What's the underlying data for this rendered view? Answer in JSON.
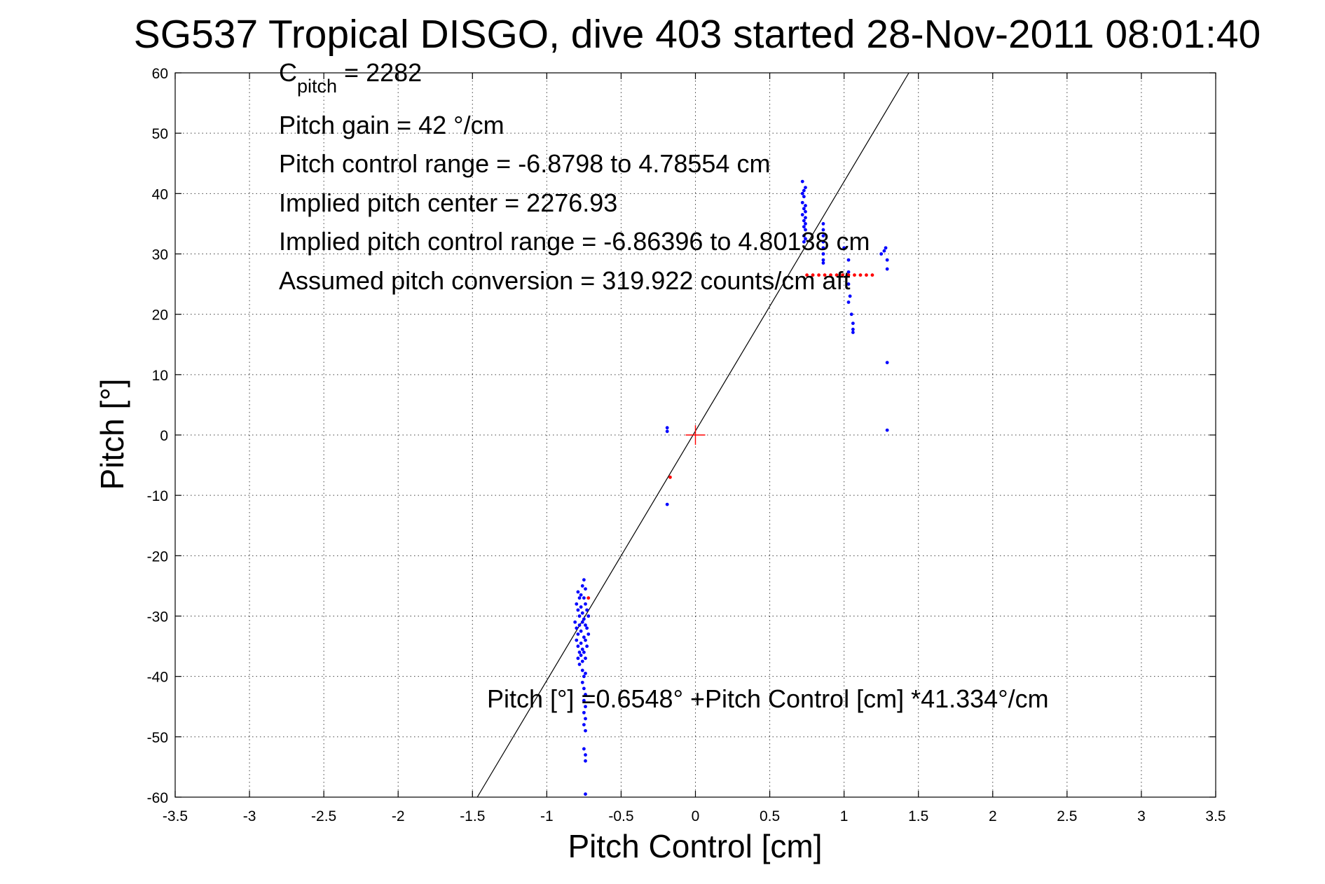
{
  "chart_data": {
    "type": "scatter",
    "title": "SG537 Tropical DISGO, dive 403 started 28-Nov-2011 08:01:40",
    "xlabel": "Pitch Control [cm]",
    "ylabel": "Pitch [°]",
    "xlim": [
      -3.5,
      3.5
    ],
    "ylim": [
      -60,
      60
    ],
    "xticks": [
      -3.5,
      -3,
      -2.5,
      -2,
      -1.5,
      -1,
      -0.5,
      0,
      0.5,
      1,
      1.5,
      2,
      2.5,
      3,
      3.5
    ],
    "xtick_labels": [
      "-3.5",
      "-3",
      "-2.5",
      "-2",
      "-1.5",
      "-1",
      "-0.5",
      "0",
      "0.5",
      "1",
      "1.5",
      "2",
      "2.5",
      "3",
      "3.5"
    ],
    "yticks": [
      -60,
      -50,
      -40,
      -30,
      -20,
      -10,
      0,
      10,
      20,
      30,
      40,
      50,
      60
    ],
    "ytick_labels": [
      "-60",
      "-50",
      "-40",
      "-30",
      "-20",
      "-10",
      "0",
      "10",
      "20",
      "30",
      "40",
      "50",
      "60"
    ],
    "grid": true,
    "fit_line": {
      "intercept": 0.6548,
      "slope": 41.334
    },
    "center_marker": {
      "x": 0,
      "y": 0
    },
    "annotations": {
      "c_pitch_main": "C",
      "c_pitch_sub": "pitch",
      "c_pitch_value": " = 2282",
      "pitch_gain": "Pitch gain = 42 °/cm",
      "pitch_control_range": "Pitch control range = -6.8798 to 4.78554 cm",
      "implied_pitch_center": "Implied pitch center = 2276.93",
      "implied_pitch_control_range": "Implied pitch control range = -6.86396 to 4.80138 cm",
      "assumed_pitch_conversion": "Assumed pitch conversion = 319.922 counts/cm aft",
      "fit_equation": "Pitch [°] =0.6548° +Pitch Control [cm] *41.334°/cm"
    },
    "series": [
      {
        "color": "#0000ff",
        "marker": "point",
        "points": [
          [
            -0.79,
            -26
          ],
          [
            -0.78,
            -27
          ],
          [
            -0.77,
            -26.5
          ],
          [
            -0.76,
            -25
          ],
          [
            -0.75,
            -24
          ],
          [
            -0.74,
            -25.5
          ],
          [
            -0.8,
            -28
          ],
          [
            -0.79,
            -29
          ],
          [
            -0.78,
            -30
          ],
          [
            -0.77,
            -28.5
          ],
          [
            -0.76,
            -29.5
          ],
          [
            -0.75,
            -27
          ],
          [
            -0.74,
            -28
          ],
          [
            -0.73,
            -29
          ],
          [
            -0.72,
            -30
          ],
          [
            -0.81,
            -31
          ],
          [
            -0.8,
            -32
          ],
          [
            -0.79,
            -33
          ],
          [
            -0.78,
            -31.5
          ],
          [
            -0.77,
            -32.5
          ],
          [
            -0.76,
            -31
          ],
          [
            -0.75,
            -30.5
          ],
          [
            -0.74,
            -31.5
          ],
          [
            -0.73,
            -32
          ],
          [
            -0.72,
            -33
          ],
          [
            -0.8,
            -34
          ],
          [
            -0.79,
            -35
          ],
          [
            -0.78,
            -36
          ],
          [
            -0.77,
            -34.5
          ],
          [
            -0.76,
            -35.5
          ],
          [
            -0.75,
            -33.5
          ],
          [
            -0.74,
            -34
          ],
          [
            -0.73,
            -35
          ],
          [
            -0.79,
            -37
          ],
          [
            -0.78,
            -38
          ],
          [
            -0.77,
            -36.5
          ],
          [
            -0.76,
            -37.5
          ],
          [
            -0.75,
            -36
          ],
          [
            -0.74,
            -37
          ],
          [
            -0.76,
            -39
          ],
          [
            -0.75,
            -40
          ],
          [
            -0.74,
            -39.5
          ],
          [
            -0.76,
            -41
          ],
          [
            -0.75,
            -42
          ],
          [
            -0.74,
            -43
          ],
          [
            -0.75,
            -44
          ],
          [
            -0.74,
            -45
          ],
          [
            -0.75,
            -46
          ],
          [
            -0.74,
            -47
          ],
          [
            -0.75,
            -48
          ],
          [
            -0.74,
            -49
          ],
          [
            -0.75,
            -52
          ],
          [
            -0.74,
            -53
          ],
          [
            -0.74,
            -54
          ],
          [
            -0.74,
            -59.5
          ],
          [
            -0.19,
            1.2
          ],
          [
            -0.19,
            0.6
          ],
          [
            -0.19,
            -11.5
          ],
          [
            0.72,
            42
          ],
          [
            0.72,
            40
          ],
          [
            0.73,
            39.5
          ],
          [
            0.72,
            38.5
          ],
          [
            0.73,
            37.5
          ],
          [
            0.72,
            36.5
          ],
          [
            0.73,
            35.5
          ],
          [
            0.74,
            36
          ],
          [
            0.73,
            34.5
          ],
          [
            0.74,
            34
          ],
          [
            0.73,
            33
          ],
          [
            0.74,
            32.5
          ],
          [
            0.73,
            32
          ],
          [
            0.74,
            41
          ],
          [
            0.73,
            40.5
          ],
          [
            0.74,
            38
          ],
          [
            0.74,
            37
          ],
          [
            0.74,
            35
          ],
          [
            0.86,
            35
          ],
          [
            0.86,
            34
          ],
          [
            0.86,
            33
          ],
          [
            0.86,
            32
          ],
          [
            0.86,
            31
          ],
          [
            0.86,
            30
          ],
          [
            0.86,
            29
          ],
          [
            0.86,
            28.5
          ],
          [
            1.0,
            31
          ],
          [
            1.03,
            29
          ],
          [
            1.03,
            27
          ],
          [
            1.03,
            25
          ],
          [
            1.04,
            23
          ],
          [
            1.03,
            22
          ],
          [
            1.05,
            20
          ],
          [
            1.06,
            18.5
          ],
          [
            1.06,
            17.5
          ],
          [
            1.06,
            17
          ],
          [
            1.25,
            30
          ],
          [
            1.27,
            30.5
          ],
          [
            1.29,
            29
          ],
          [
            1.29,
            27.5
          ],
          [
            1.28,
            31
          ],
          [
            1.29,
            12
          ],
          [
            1.29,
            0.8
          ]
        ]
      },
      {
        "color": "#ff0000",
        "marker": "point",
        "points": [
          [
            0.75,
            26.5
          ],
          [
            0.79,
            26.5
          ],
          [
            0.83,
            26.5
          ],
          [
            0.87,
            26.5
          ],
          [
            0.91,
            26.5
          ],
          [
            0.95,
            26.5
          ],
          [
            0.99,
            26.5
          ],
          [
            1.03,
            26.5
          ],
          [
            1.07,
            26.5
          ],
          [
            1.11,
            26.5
          ],
          [
            1.15,
            26.5
          ],
          [
            1.19,
            26.5
          ],
          [
            -0.17,
            -7
          ],
          [
            -0.72,
            -27
          ]
        ]
      }
    ]
  }
}
